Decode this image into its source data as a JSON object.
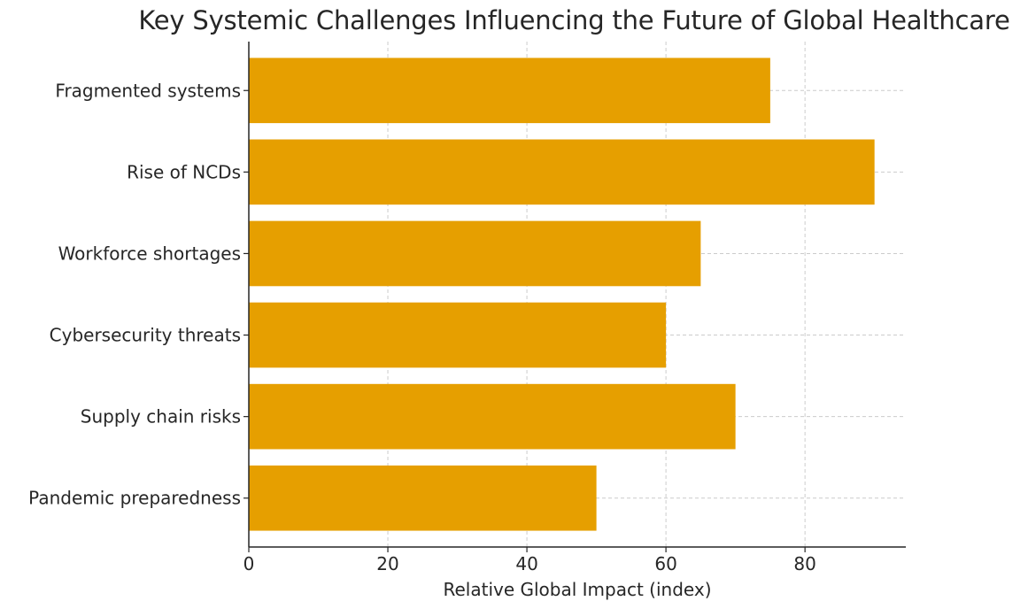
{
  "chart_data": {
    "type": "bar",
    "orientation": "horizontal",
    "title": "Key Systemic Challenges Influencing the Future of Global Healthcare",
    "xlabel": "Relative Global Impact (index)",
    "ylabel": "",
    "categories": [
      "Fragmented systems",
      "Rise of NCDs",
      "Workforce shortages",
      "Cybersecurity threats",
      "Supply chain risks",
      "Pandemic preparedness"
    ],
    "values": [
      75,
      90,
      65,
      60,
      70,
      50
    ],
    "xlim": [
      0,
      94.5
    ],
    "xticks": [
      0,
      20,
      40,
      60,
      80
    ],
    "xtick_labels": [
      "0",
      "20",
      "40",
      "60",
      "80"
    ],
    "grid": true,
    "bar_color": "#E69F00",
    "grid_color": "#cccccc",
    "axis_color": "#262626"
  }
}
